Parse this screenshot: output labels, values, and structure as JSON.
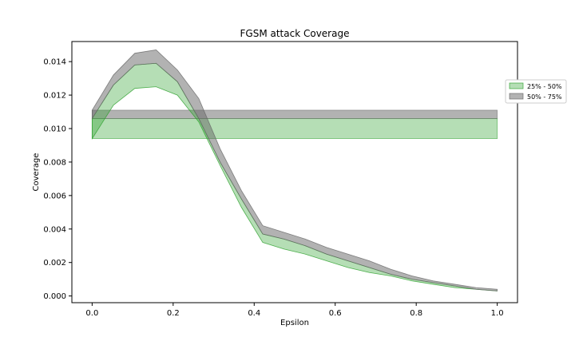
{
  "chart_data": {
    "type": "area",
    "title": "FGSM attack Coverage",
    "xlabel": "Epsilon",
    "ylabel": "Coverage",
    "xlim": [
      -0.05,
      1.05
    ],
    "ylim": [
      -0.0004,
      0.0152
    ],
    "xticks": [
      0.0,
      0.2,
      0.4,
      0.6,
      0.8,
      1.0
    ],
    "xtick_labels": [
      "0.0",
      "0.2",
      "0.4",
      "0.6",
      "0.8",
      "1.0"
    ],
    "yticks": [
      0.0,
      0.002,
      0.004,
      0.006,
      0.008,
      0.01,
      0.012,
      0.014
    ],
    "ytick_labels": [
      "0.000",
      "0.002",
      "0.004",
      "0.006",
      "0.008",
      "0.010",
      "0.012",
      "0.014"
    ],
    "grid": false,
    "legend_position": "right",
    "x": [
      0.0,
      0.0526,
      0.1053,
      0.1579,
      0.2105,
      0.2632,
      0.3158,
      0.3684,
      0.4211,
      0.4737,
      0.5263,
      0.5789,
      0.6316,
      0.6842,
      0.7368,
      0.7895,
      0.8421,
      0.8947,
      0.9474,
      1.0
    ],
    "series": [
      {
        "name": "25% - 50%",
        "color": "#2ca02c",
        "opacity": 0.35,
        "lower": [
          0.0094,
          0.0114,
          0.0124,
          0.0125,
          0.012,
          0.0104,
          0.0078,
          0.0053,
          0.0032,
          0.0028,
          0.0025,
          0.0021,
          0.0017,
          0.0014,
          0.0012,
          0.0009,
          0.0007,
          0.0005,
          0.0004,
          0.0003
        ],
        "upper": [
          0.0106,
          0.0126,
          0.0138,
          0.0139,
          0.0128,
          0.0106,
          0.008,
          0.0058,
          0.0037,
          0.0034,
          0.003,
          0.0025,
          0.0021,
          0.0017,
          0.0013,
          0.001,
          0.0008,
          0.0006,
          0.0004,
          0.0003
        ]
      },
      {
        "name": "50% - 75%",
        "color": "#666666",
        "opacity": 0.5,
        "lower": [
          0.0106,
          0.0126,
          0.0138,
          0.0139,
          0.0128,
          0.0106,
          0.008,
          0.0058,
          0.0037,
          0.0034,
          0.003,
          0.0025,
          0.0021,
          0.0017,
          0.0013,
          0.001,
          0.0008,
          0.0006,
          0.0004,
          0.0003
        ],
        "upper": [
          0.0111,
          0.0132,
          0.0145,
          0.0147,
          0.0135,
          0.0118,
          0.0088,
          0.0063,
          0.0042,
          0.0038,
          0.0034,
          0.0029,
          0.0025,
          0.0021,
          0.0016,
          0.0012,
          0.0009,
          0.0007,
          0.0005,
          0.0004
        ]
      }
    ],
    "reference_bands": [
      {
        "series": "25% - 50%",
        "lower": 0.0094,
        "upper": 0.0106
      },
      {
        "series": "50% - 75%",
        "lower": 0.0106,
        "upper": 0.0111
      }
    ]
  }
}
